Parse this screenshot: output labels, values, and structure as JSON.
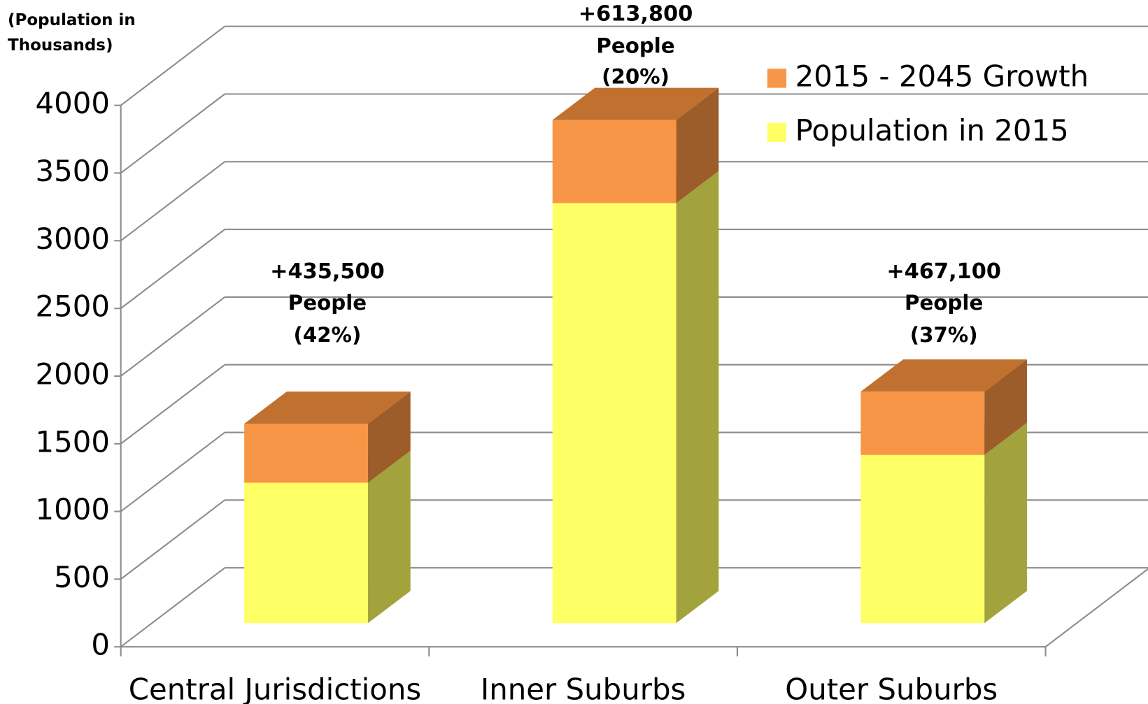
{
  "chart_data": {
    "type": "bar3d_stacked",
    "y_label": "(Population in Thousands)",
    "categories": [
      "Central Jurisdictions",
      "Inner Suburbs",
      "Outer Suburbs"
    ],
    "series": [
      {
        "name": "Population in 2015",
        "color": "#FFFF66",
        "side_color": "#A3A33D",
        "values": [
          1037,
          3103,
          1243
        ]
      },
      {
        "name": "2015 - 2045 Growth",
        "color": "#F79646",
        "side_color": "#9C5D2B",
        "top_color": "#C0712F",
        "values": [
          435.5,
          613.8,
          467.1
        ],
        "value_labels": [
          "+435,500",
          "+613,800",
          "+467,100"
        ]
      }
    ],
    "annotations": [
      [
        "People",
        "(42%)"
      ],
      [
        "People",
        "(20%)"
      ],
      [
        "People",
        "(37%)"
      ]
    ],
    "ylim": [
      0,
      4000
    ],
    "yticks": [
      0,
      500,
      1000,
      1500,
      2000,
      2500,
      3000,
      3500,
      4000
    ],
    "grid": true,
    "legend": "top-right"
  }
}
